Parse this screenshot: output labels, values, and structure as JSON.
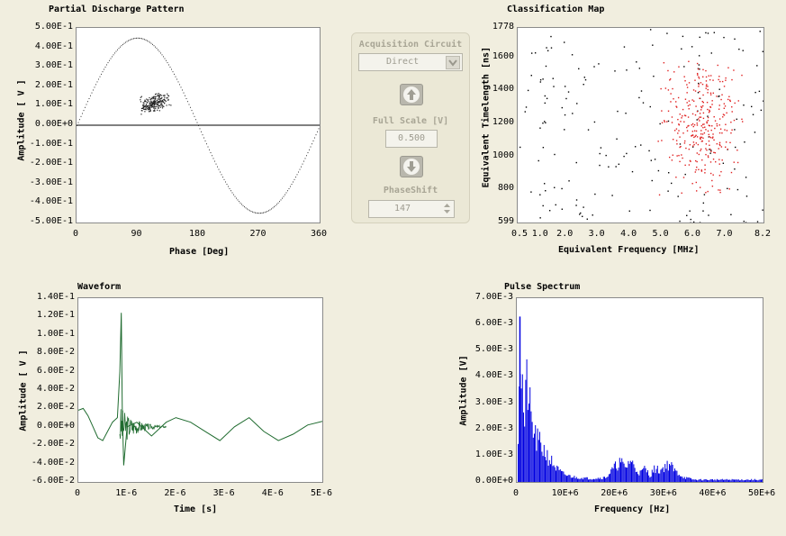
{
  "pd": {
    "title": "Partial Discharge Pattern",
    "ylabel": "Amplitude [ V ]",
    "xlabel": "Phase [Deg]",
    "xticks": [
      "0",
      "90",
      "180",
      "270",
      "360"
    ],
    "yticks": [
      "5.00E-1",
      "4.00E-1",
      "3.00E-1",
      "2.00E-1",
      "1.00E-1",
      "0.00E+0",
      "-1.00E-1",
      "-2.00E-1",
      "-3.00E-1",
      "-4.00E-1",
      "-5.00E-1"
    ]
  },
  "cm": {
    "title": "Classification Map",
    "ylabel": "Equivalent Timelength [ns]",
    "xlabel": "Equivalent Frequency [MHz]",
    "xticks": [
      "0.5",
      "1.0",
      "2.0",
      "3.0",
      "4.0",
      "5.0",
      "6.0",
      "7.0",
      "8.2"
    ],
    "yticks": [
      "1778",
      "1600",
      "1400",
      "1200",
      "1000",
      "800",
      "599"
    ]
  },
  "wf": {
    "title": "Waveform",
    "ylabel": "Amplitude [ V ]",
    "xlabel": "Time [s]",
    "xticks": [
      "0",
      "1E-6",
      "2E-6",
      "3E-6",
      "4E-6",
      "5E-6"
    ],
    "yticks": [
      "1.40E-1",
      "1.20E-1",
      "1.00E-1",
      "8.00E-2",
      "6.00E-2",
      "4.00E-2",
      "2.00E-2",
      "0.00E+0",
      "-2.00E-2",
      "-4.00E-2",
      "-6.00E-2"
    ]
  },
  "ps": {
    "title": "Pulse Spectrum",
    "ylabel": "Amplitude [V]",
    "xlabel": "Frequency [Hz]",
    "xticks": [
      "0",
      "10E+6",
      "20E+6",
      "30E+6",
      "40E+6",
      "50E+6"
    ],
    "yticks": [
      "7.00E-3",
      "6.00E-3",
      "5.00E-3",
      "4.00E-3",
      "3.00E-3",
      "2.00E-3",
      "1.00E-3",
      "0.00E+0"
    ]
  },
  "panel": {
    "acq_label": "Acquisition Circuit",
    "acq_value": "Direct",
    "fullscale_label": "Full Scale [V]",
    "fullscale_value": "0.500",
    "phaseshift_label": "PhaseShift",
    "phaseshift_value": "147"
  },
  "colors": {
    "waveform": "#1f6b2f",
    "spectrum": "#0000e0",
    "map_red": "#e02020",
    "map_black": "#000000"
  },
  "chart_data": [
    {
      "type": "scatter",
      "title": "Partial Discharge Pattern",
      "xlabel": "Phase [Deg]",
      "ylabel": "Amplitude [ V ]",
      "xlim": [
        0,
        360
      ],
      "ylim": [
        -0.5,
        0.5
      ],
      "reference": "sine 0.45*sin(phase)",
      "cluster": {
        "phase_range": [
          90,
          140
        ],
        "amplitude_range": [
          0.07,
          0.17
        ]
      }
    },
    {
      "type": "scatter",
      "title": "Classification Map",
      "xlabel": "Equivalent Frequency [MHz]",
      "ylabel": "Equivalent Timelength [ns]",
      "xlim": [
        0.5,
        8.2
      ],
      "ylim": [
        599,
        1778
      ],
      "series": [
        {
          "name": "",
          "color": "red",
          "x_range": [
            4.8,
            7.6
          ],
          "y_range": [
            700,
            1650
          ]
        },
        {
          "name": "",
          "color": "black",
          "x_range": [
            0.5,
            8.2
          ],
          "y_range": [
            599,
            1778
          ]
        }
      ]
    },
    {
      "type": "line",
      "title": "Waveform",
      "xlabel": "Time [s]",
      "ylabel": "Amplitude [ V ]",
      "xlim": [
        0,
        5e-06
      ],
      "ylim": [
        -0.06,
        0.14
      ],
      "x": [
        0,
        1e-07,
        2e-07,
        3e-07,
        4e-07,
        5e-07,
        6e-07,
        7e-07,
        8e-07,
        8.5e-07,
        8.8e-07,
        9e-07,
        9.3e-07,
        1e-06,
        1.2e-06,
        1.5e-06,
        1.8e-06,
        2e-06,
        2.3e-06,
        2.6e-06,
        2.9e-06,
        3.2e-06,
        3.5e-06,
        3.8e-06,
        4.1e-06,
        4.4e-06,
        4.7e-06,
        5e-06
      ],
      "y": [
        0.018,
        0.02,
        0.012,
        0.0,
        -0.012,
        -0.015,
        -0.005,
        0.005,
        0.01,
        0.06,
        0.124,
        0.02,
        -0.042,
        0.0,
        0.005,
        -0.01,
        0.005,
        0.01,
        0.005,
        -0.005,
        -0.015,
        0.0,
        0.01,
        -0.005,
        -0.015,
        -0.008,
        0.002,
        0.006
      ]
    },
    {
      "type": "bar",
      "title": "Pulse Spectrum",
      "xlabel": "Frequency [Hz]",
      "ylabel": "Amplitude [V]",
      "xlim": [
        0,
        50000000.0
      ],
      "ylim": [
        0,
        0.007
      ],
      "x": [
        0,
        500000.0,
        1000000.0,
        1500000.0,
        2000000.0,
        2500000.0,
        3000000.0,
        4000000.0,
        5000000.0,
        6000000.0,
        7000000.0,
        8000000.0,
        9000000.0,
        10000000.0,
        12000000.0,
        15000000.0,
        18000000.0,
        20000000.0,
        21000000.0,
        22000000.0,
        23000000.0,
        24000000.0,
        25000000.0,
        26000000.0,
        27000000.0,
        28000000.0,
        29000000.0,
        30000000.0,
        31000000.0,
        32000000.0,
        34000000.0,
        36000000.0,
        40000000.0,
        45000000.0,
        50000000.0
      ],
      "y": [
        0.0003,
        0.0063,
        0.0045,
        0.0025,
        0.0047,
        0.0033,
        0.0025,
        0.0018,
        0.0016,
        0.0012,
        0.0009,
        0.0006,
        0.0004,
        0.0003,
        0.0002,
        0.00015,
        0.0002,
        0.0007,
        0.0009,
        0.0006,
        0.001,
        0.0006,
        0.0004,
        0.0006,
        0.0003,
        0.0006,
        0.0005,
        0.0007,
        0.0008,
        0.0005,
        0.0002,
        0.0001,
        0.0001,
        0.0001,
        0.0001
      ]
    }
  ]
}
